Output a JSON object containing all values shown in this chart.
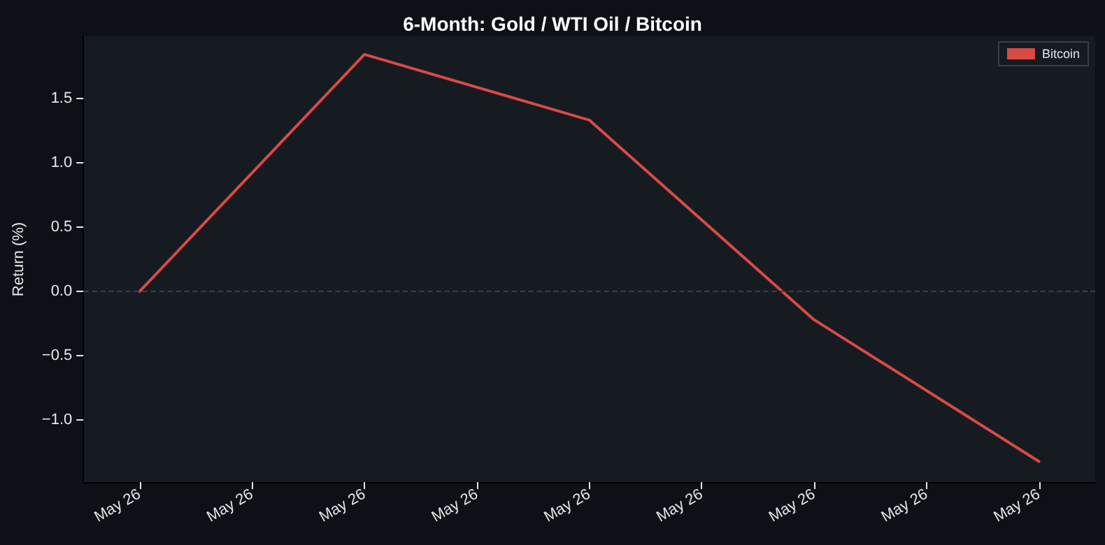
{
  "chart_data": {
    "type": "line",
    "title": "6-Month: Gold / WTI Oil / Bitcoin",
    "ylabel": "Return (%)",
    "categories": [
      "May 26",
      "May 26",
      "May 26",
      "May 26",
      "May 26",
      "May 26",
      "May 26",
      "May 26",
      "May 26"
    ],
    "series": [
      {
        "name": "Bitcoin",
        "color": "#d94a45",
        "values": [
          0,
          null,
          1.84,
          null,
          1.33,
          null,
          -0.22,
          null,
          -1.32
        ]
      }
    ],
    "ylim": [
      -1.48,
      1.98
    ],
    "yticks": [
      {
        "value": -1,
        "label": "−1.0"
      },
      {
        "value": -0.5,
        "label": "−0.5"
      },
      {
        "value": 0,
        "label": "0.0"
      },
      {
        "value": 0.5,
        "label": "0.5"
      },
      {
        "value": 1,
        "label": "1.0"
      },
      {
        "value": 1.5,
        "label": "1.5"
      }
    ],
    "ref_lines": [
      {
        "axis": "y",
        "value": 0,
        "color": "#3a3f47",
        "line_style": "dashed"
      }
    ],
    "legend": "top right",
    "grid": false,
    "marker": "none",
    "line_style": "solid"
  }
}
